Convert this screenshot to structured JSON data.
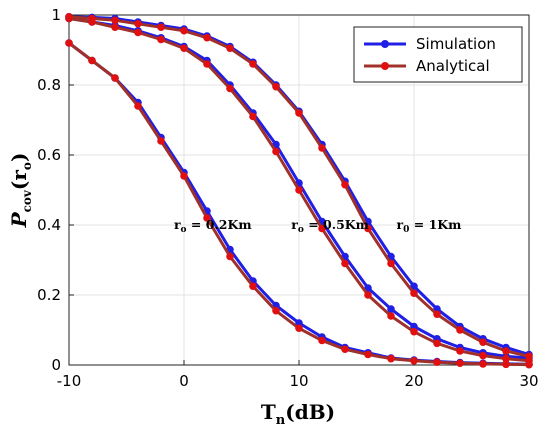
{
  "chart_data": {
    "type": "line",
    "xlabel": "T_n(dB)",
    "xlabel_parts": {
      "main": "T",
      "sub": "n",
      "rest": "(dB)"
    },
    "ylabel_parts": {
      "main": "P",
      "sub": "cov",
      "arg_main": "r",
      "arg_sub": "o"
    },
    "xlim": [
      -10,
      30
    ],
    "ylim": [
      0,
      1
    ],
    "x_ticks": [
      "-10",
      "0",
      "10",
      "20",
      "30"
    ],
    "y_ticks": [
      "0",
      "0.2",
      "0.4",
      "0.6",
      "0.8",
      "1"
    ],
    "grid": true,
    "legend_position": "top-right",
    "legend": [
      {
        "name": "Simulation",
        "color": "#1f1fe6",
        "marker_color": "#1f1fe6"
      },
      {
        "name": "Analytical",
        "color": "#a0302a",
        "marker_color": "#e01010"
      }
    ],
    "x": [
      -10,
      -8,
      -6,
      -4,
      -2,
      0,
      2,
      4,
      6,
      8,
      10,
      12,
      14,
      16,
      18,
      20,
      22,
      24,
      26,
      28,
      30
    ],
    "curves": [
      {
        "label": "r_o = 0.2Km",
        "simulation": [
          0.92,
          0.87,
          0.82,
          0.75,
          0.65,
          0.55,
          0.44,
          0.33,
          0.24,
          0.17,
          0.12,
          0.08,
          0.05,
          0.035,
          0.02,
          0.014,
          0.01,
          0.007,
          0.005,
          0.003,
          0.002
        ],
        "analytical": [
          0.92,
          0.87,
          0.82,
          0.74,
          0.64,
          0.54,
          0.42,
          0.31,
          0.225,
          0.155,
          0.105,
          0.07,
          0.045,
          0.03,
          0.018,
          0.012,
          0.008,
          0.005,
          0.003,
          0.002,
          0.001
        ]
      },
      {
        "label": "r_o = 0.5Km",
        "simulation": [
          0.99,
          0.98,
          0.97,
          0.955,
          0.935,
          0.91,
          0.87,
          0.8,
          0.72,
          0.63,
          0.52,
          0.41,
          0.31,
          0.22,
          0.16,
          0.11,
          0.075,
          0.05,
          0.035,
          0.025,
          0.02
        ],
        "analytical": [
          0.99,
          0.98,
          0.965,
          0.95,
          0.93,
          0.905,
          0.86,
          0.79,
          0.71,
          0.61,
          0.5,
          0.39,
          0.29,
          0.2,
          0.14,
          0.095,
          0.062,
          0.04,
          0.027,
          0.018,
          0.012
        ]
      },
      {
        "label": "r_0 = 1Km",
        "simulation": [
          0.995,
          0.993,
          0.99,
          0.98,
          0.97,
          0.96,
          0.94,
          0.91,
          0.865,
          0.8,
          0.725,
          0.63,
          0.525,
          0.41,
          0.31,
          0.225,
          0.16,
          0.11,
          0.075,
          0.05,
          0.03
        ],
        "analytical": [
          0.995,
          0.99,
          0.985,
          0.975,
          0.965,
          0.955,
          0.935,
          0.905,
          0.86,
          0.795,
          0.72,
          0.62,
          0.515,
          0.39,
          0.29,
          0.205,
          0.145,
          0.1,
          0.065,
          0.04,
          0.025
        ]
      }
    ],
    "annotations": [
      {
        "text": "r_o = 0.2Km",
        "main": "r",
        "sub": "o",
        "rest": " = 0.2Km",
        "x": 2.5,
        "y": 0.4
      },
      {
        "text": "r_o = 0.5Km",
        "main": "r",
        "sub": "o",
        "rest": " = 0.5Km",
        "x": 12.7,
        "y": 0.4
      },
      {
        "text": "r_0 = 1Km",
        "main": "r",
        "sub": "0",
        "rest": " = 1Km",
        "x": 21.3,
        "y": 0.4
      }
    ]
  }
}
